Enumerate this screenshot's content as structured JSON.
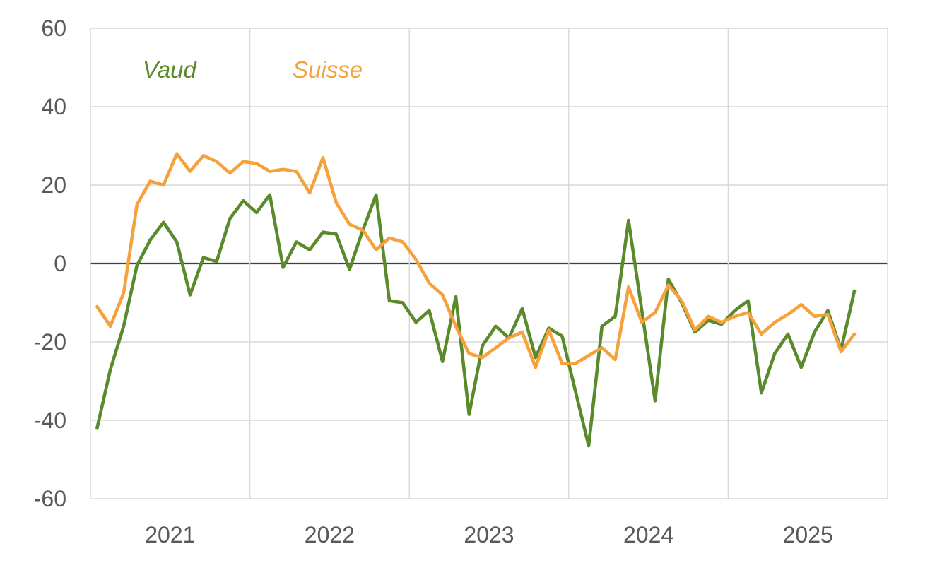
{
  "chart_data": {
    "type": "line",
    "title": "",
    "xlabel": "",
    "ylabel": "",
    "grid": true,
    "x_axis": {
      "years": [
        "2021",
        "2022",
        "2023",
        "2024",
        "2025"
      ],
      "months_per_year": 12,
      "total_slots": 60,
      "start_month": "2021-01",
      "end_month": "2025-10"
    },
    "y_axis": {
      "min": -60,
      "max": 60,
      "tick_step": 20,
      "ticks": [
        60,
        40,
        20,
        0,
        -20,
        -40,
        -60
      ]
    },
    "legend": [
      {
        "label": "Vaud",
        "color": "#5a8a2c"
      },
      {
        "label": "Suisse",
        "color": "#f6a13c"
      }
    ],
    "x_months": [
      "2021-01",
      "2021-02",
      "2021-03",
      "2021-04",
      "2021-05",
      "2021-06",
      "2021-07",
      "2021-08",
      "2021-09",
      "2021-10",
      "2021-11",
      "2021-12",
      "2022-01",
      "2022-02",
      "2022-03",
      "2022-04",
      "2022-05",
      "2022-06",
      "2022-07",
      "2022-08",
      "2022-09",
      "2022-10",
      "2022-11",
      "2022-12",
      "2023-01",
      "2023-02",
      "2023-03",
      "2023-04",
      "2023-05",
      "2023-06",
      "2023-07",
      "2023-08",
      "2023-09",
      "2023-10",
      "2023-11",
      "2023-12",
      "2024-01",
      "2024-02",
      "2024-03",
      "2024-04",
      "2024-05",
      "2024-06",
      "2024-07",
      "2024-08",
      "2024-09",
      "2024-10",
      "2024-11",
      "2024-12",
      "2025-01",
      "2025-02",
      "2025-03",
      "2025-04",
      "2025-05",
      "2025-06",
      "2025-07",
      "2025-08",
      "2025-09",
      "2025-10"
    ],
    "series": [
      {
        "name": "Vaud",
        "color": "#5a8a2c",
        "values": [
          -42,
          -27,
          -16,
          -0.5,
          6,
          10.5,
          5.5,
          -8,
          1.5,
          0.5,
          11.5,
          16,
          13,
          17.5,
          -1,
          5.5,
          3.5,
          8,
          7.5,
          -1.5,
          8.5,
          17.5,
          -9.5,
          -10,
          -15,
          -12,
          -25,
          -8.5,
          -38.5,
          -21,
          -16,
          -19,
          -11.5,
          -24,
          -16.5,
          -18.5,
          -32.5,
          -46.5,
          -16,
          -13.5,
          11,
          -12,
          -35,
          -4,
          -10,
          -17.5,
          -14.5,
          -15.5,
          -12,
          -9.5,
          -33,
          -23,
          -18,
          -26.5,
          -17.5,
          -12,
          -22,
          -7
        ]
      },
      {
        "name": "Suisse",
        "color": "#f6a13c",
        "values": [
          -11,
          -16,
          -7.5,
          15,
          21,
          20,
          28,
          23.5,
          27.5,
          26,
          23,
          26,
          25.5,
          23.5,
          24,
          23.5,
          18,
          27,
          15.5,
          10,
          8.5,
          3.5,
          6.5,
          5.5,
          1,
          -5,
          -8,
          -16,
          -23,
          -24,
          -21.5,
          -19,
          -17.5,
          -26.5,
          -17,
          -25.5,
          -25.5,
          -23.5,
          -21.5,
          -24.5,
          -6,
          -15,
          -12.5,
          -5.5,
          -9.5,
          -17,
          -13.5,
          -15,
          -13.5,
          -12.5,
          -18,
          -15,
          -13,
          -10.5,
          -13.5,
          -13,
          -22.5,
          -18
        ]
      }
    ],
    "colors": {
      "gridline": "#d8d8d8",
      "zero_line": "#404040",
      "axis_label": "#595959",
      "background": "#ffffff"
    }
  }
}
